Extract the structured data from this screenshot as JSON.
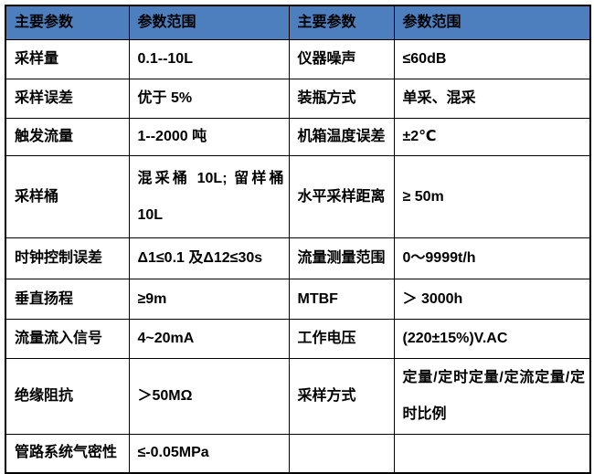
{
  "colors": {
    "header_bg": "#4d7ebd",
    "header_text": "#000000",
    "body_text": "#000000",
    "border": "#000000"
  },
  "table": {
    "header": [
      "主要参数",
      "参数范围",
      "主要参数",
      "参数范围"
    ],
    "rows": [
      [
        "采样量",
        "0.1--10L",
        "仪器噪声",
        "≤60dB"
      ],
      [
        "采样误差",
        "优于 5%",
        "装瓶方式",
        "单采、混采"
      ],
      [
        "触发流量",
        "1--2000 吨",
        "机箱温度误差",
        "±2℃"
      ],
      [
        "采样桶",
        "混采桶 10L; 留样桶 10L",
        "水平采样距离",
        "≥ 50m"
      ],
      [
        "时钟控制误差",
        "Δ1≤0.1 及Δ12≤30s",
        "流量测量范围",
        "0～9999t/h"
      ],
      [
        "垂直扬程",
        "≥9m",
        "MTBF",
        "＞ 3000h"
      ],
      [
        "流量流入信号",
        "4~20mA",
        "工作电压",
        "(220±15%)V.AC"
      ],
      [
        "绝缘阻抗",
        "＞50MΩ",
        "采样方式",
        "定量/定时定量/定流定量/定时比例"
      ],
      [
        "管路系统气密性",
        "≤-0.05MPa",
        "",
        ""
      ]
    ]
  }
}
